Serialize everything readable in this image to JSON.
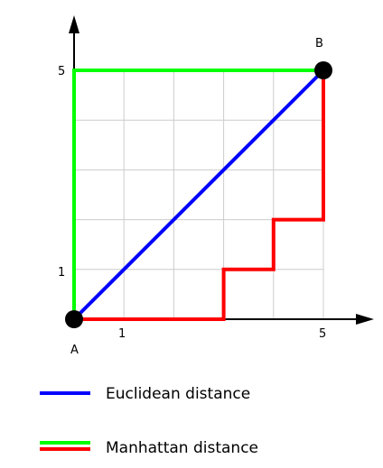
{
  "diagram": {
    "grid_range": [
      0,
      5
    ],
    "point_a": {
      "label": "A",
      "x": 0,
      "y": 0
    },
    "point_b": {
      "label": "B",
      "x": 5,
      "y": 5
    },
    "x_ticks": [
      "1",
      "5"
    ],
    "y_ticks": [
      "1",
      "5"
    ],
    "paths": {
      "euclidean": {
        "color": "#0000ff",
        "points": [
          [
            0,
            0
          ],
          [
            5,
            5
          ]
        ]
      },
      "manhattan_green": {
        "color": "#00ff00",
        "points": [
          [
            0,
            0
          ],
          [
            0,
            5
          ],
          [
            5,
            5
          ]
        ]
      },
      "manhattan_red": {
        "color": "#ff0000",
        "points": [
          [
            0,
            0
          ],
          [
            3,
            0
          ],
          [
            3,
            1
          ],
          [
            4,
            1
          ],
          [
            4,
            2
          ],
          [
            5,
            2
          ],
          [
            5,
            5
          ]
        ]
      }
    },
    "grid_color": "#cccccc",
    "axis_color": "#000000"
  },
  "legend": {
    "euclidean_label": "Euclidean distance",
    "manhattan_label": "Manhattan distance"
  }
}
